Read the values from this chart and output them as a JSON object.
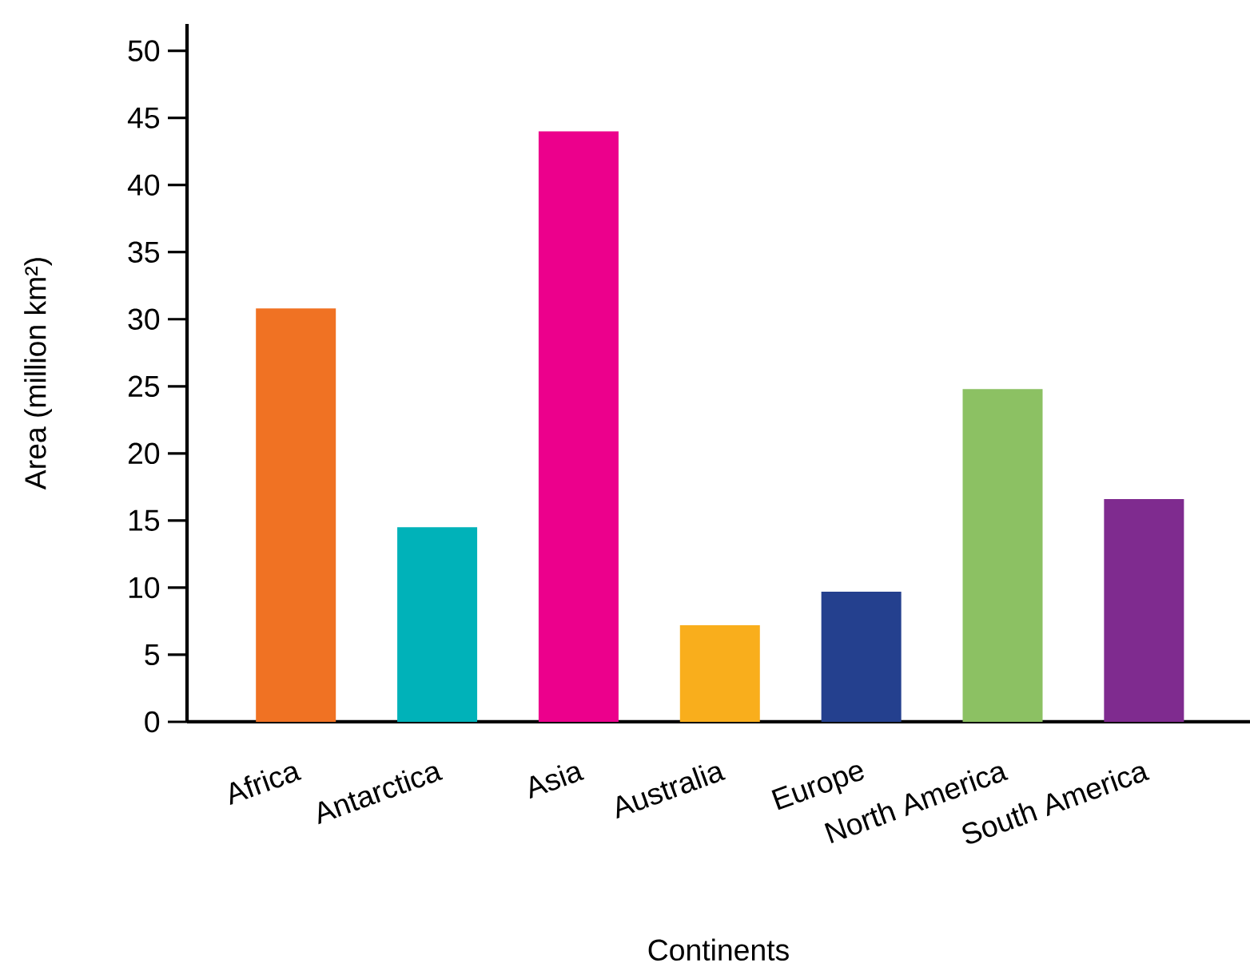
{
  "chart_data": {
    "type": "bar",
    "xlabel": "Continents",
    "ylabel": "Area (million km²)",
    "categories": [
      "Africa",
      "Antarctica",
      "Asia",
      "Australia",
      "Europe",
      "North America",
      "South America"
    ],
    "values": [
      30.8,
      14.5,
      44.0,
      7.2,
      9.7,
      24.8,
      16.6
    ],
    "colors": [
      "#f07223",
      "#00b2b9",
      "#ec008c",
      "#f9ae1c",
      "#24408e",
      "#8cc163",
      "#7f2b8f"
    ],
    "ylim": [
      0,
      52
    ],
    "yticks": [
      0,
      5,
      10,
      15,
      20,
      25,
      30,
      35,
      40,
      45,
      50
    ],
    "grid": false
  }
}
